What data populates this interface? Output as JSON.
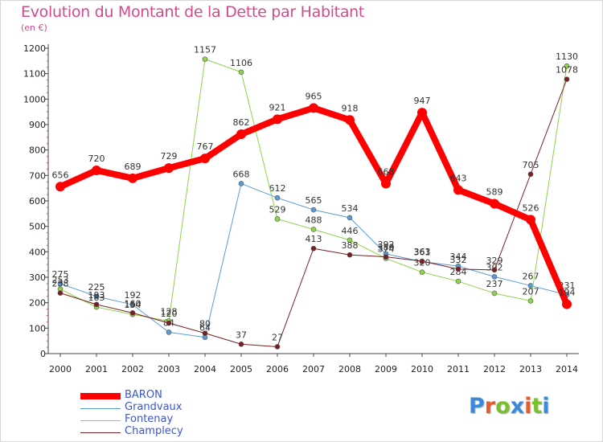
{
  "title": "Evolution du Montant de la Dette par Habitant",
  "unit": "(en €)",
  "logo": {
    "text": "Proxiti",
    "colors": [
      "#3b8ad8",
      "#e55c2d",
      "#7cbf2e",
      "#3b8ad8",
      "#e55c2d",
      "#7cbf2e",
      "#3b8ad8"
    ]
  },
  "chart_data": {
    "type": "line",
    "x": [
      "2000",
      "2001",
      "2002",
      "2003",
      "2004",
      "2005",
      "2006",
      "2007",
      "2008",
      "2009",
      "2010",
      "2011",
      "2012",
      "2013",
      "2014"
    ],
    "ylim": [
      0,
      1200
    ],
    "yticks": [
      "0",
      "100",
      "200",
      "300",
      "400",
      "500",
      "600",
      "700",
      "800",
      "900",
      "1000",
      "1100",
      "1200"
    ],
    "grid": false,
    "legend_position": "bottom-left",
    "series": [
      {
        "name": "Grandvaux",
        "color": "#5b9bd5",
        "width": 1,
        "values": [
          275,
          225,
          192,
          84,
          64,
          668,
          612,
          565,
          534,
          392,
          361,
          344,
          302,
          267,
          231
        ],
        "labels": [
          "275",
          "225",
          "192",
          "84",
          "64",
          "668",
          "612",
          "565",
          "534",
          "392",
          "361",
          "344",
          "302",
          "267",
          "231"
        ]
      },
      {
        "name": "Fontenay",
        "color": "#8fd44a",
        "width": 1,
        "values": [
          253,
          183,
          154,
          128,
          1157,
          1106,
          529,
          488,
          446,
          374,
          320,
          284,
          237,
          207,
          1130
        ],
        "labels": [
          "253",
          "183",
          "154",
          "128",
          "1157",
          "1106",
          "529",
          "488",
          "446",
          "374",
          "320",
          "284",
          "237",
          "207",
          "1130"
        ]
      },
      {
        "name": "Champlecy",
        "color": "#7a1f23",
        "width": 1,
        "values": [
          238,
          193,
          160,
          120,
          80,
          37,
          27,
          413,
          388,
          380,
          363,
          332,
          329,
          705,
          1078
        ],
        "labels": [
          "238",
          "193",
          "160",
          "120",
          "80",
          "37",
          "27",
          "413",
          "388",
          "380",
          "363",
          "332",
          "329",
          "705",
          "1078"
        ]
      },
      {
        "name": "BARON",
        "color": "#ff0000",
        "width": 8,
        "values": [
          656,
          720,
          689,
          729,
          767,
          862,
          921,
          965,
          918,
          668,
          947,
          643,
          589,
          526,
          194
        ],
        "labels": [
          "656",
          "720",
          "689",
          "729",
          "767",
          "862",
          "921",
          "965",
          "918",
          "668",
          "947",
          "643",
          "589",
          "526",
          "194"
        ]
      }
    ],
    "legend": [
      {
        "name": "BARON",
        "color": "#ff0000",
        "width": 8
      },
      {
        "name": "Grandvaux",
        "color": "#5b9bd5",
        "width": 1
      },
      {
        "name": "Fontenay",
        "color": "#8fd44a",
        "width": 1
      },
      {
        "name": "Champlecy",
        "color": "#7a1f23",
        "width": 1
      }
    ]
  }
}
